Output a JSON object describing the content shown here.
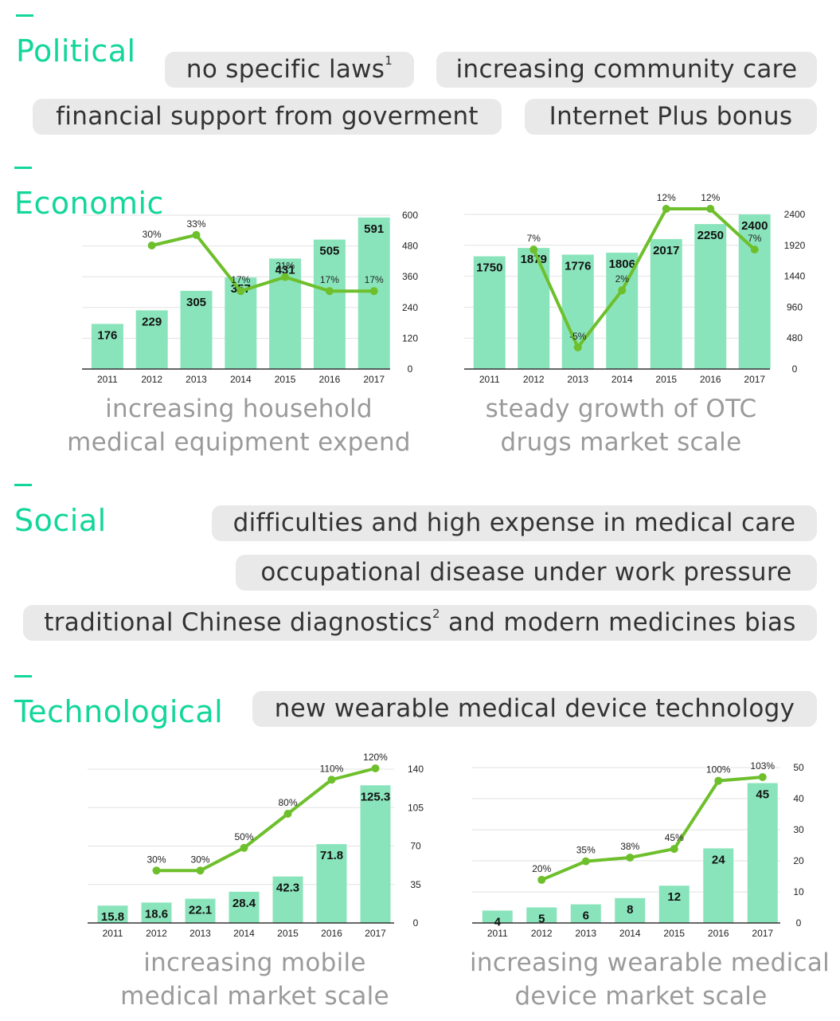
{
  "colors": {
    "accent": "#12d69a",
    "bar": "#8ae4bb",
    "line": "#6ebf2c",
    "pill_bg": "#e9e9e9",
    "caption": "#9a9a9a",
    "grid": "#e2e2e2"
  },
  "sections": {
    "political": {
      "title": "Political",
      "pills": [
        {
          "text": "no specific laws",
          "sup": "1"
        },
        {
          "text": "increasing community care"
        },
        {
          "text": "financial support from goverment"
        },
        {
          "text": "Internet Plus bonus"
        }
      ]
    },
    "economic": {
      "title": "Economic"
    },
    "social": {
      "title": "Social",
      "pills": [
        {
          "text": "difficulties and high expense in medical care"
        },
        {
          "text": "occupational disease under work pressure"
        },
        {
          "text": "traditional Chinese diagnostics",
          "sup": "2",
          "text_after": " and modern medicines bias"
        }
      ]
    },
    "technological": {
      "title": "Technological",
      "pills": [
        {
          "text": "new wearable medical device technology"
        }
      ]
    }
  },
  "chart_data": [
    {
      "type": "bar",
      "categories": [
        "2011",
        "2012",
        "2013",
        "2014",
        "2015",
        "2016",
        "2017"
      ],
      "series": [
        {
          "name": "household medical equipment expend",
          "type": "bar",
          "values": [
            176,
            229,
            305,
            357,
            431,
            505,
            591
          ],
          "labels": [
            "176",
            "229",
            "305",
            "357",
            "431",
            "505",
            "591"
          ]
        },
        {
          "name": "growth rate",
          "type": "line",
          "values": [
            null,
            30,
            33,
            17,
            21,
            17,
            17
          ],
          "labels": [
            null,
            "30%",
            "33%",
            "17%",
            "21%",
            "17%",
            "17%"
          ]
        }
      ],
      "y_right_ticks": [
        "0",
        "120",
        "240",
        "360",
        "480",
        "600"
      ],
      "ylim": [
        0,
        600
      ],
      "line_range": [
        0,
        40
      ],
      "caption": [
        "increasing household",
        "medical equipment expend"
      ]
    },
    {
      "type": "bar",
      "categories": [
        "2011",
        "2012",
        "2013",
        "2014",
        "2015",
        "2016",
        "2017"
      ],
      "series": [
        {
          "name": "OTC drugs market scale",
          "type": "bar",
          "values": [
            1750,
            1879,
            1776,
            1806,
            2017,
            2250,
            2400
          ],
          "labels": [
            "1750",
            "1879",
            "1776",
            "1806",
            "2017",
            "2250",
            "2400"
          ]
        },
        {
          "name": "growth rate",
          "type": "line",
          "values": [
            null,
            7,
            -5,
            2,
            12,
            12,
            7
          ],
          "labels": [
            null,
            "7%",
            "-5%",
            "2%",
            "12%",
            "12%",
            "7%"
          ]
        }
      ],
      "y_right_ticks": [
        "0",
        "480",
        "960",
        "1440",
        "1920",
        "2400"
      ],
      "ylim": [
        0,
        2400
      ],
      "line_range": [
        -6,
        12
      ],
      "caption": [
        "steady growth of OTC",
        "drugs market scale"
      ]
    },
    {
      "type": "bar",
      "categories": [
        "2011",
        "2012",
        "2013",
        "2014",
        "2015",
        "2016",
        "2017"
      ],
      "series": [
        {
          "name": "mobile medical market scale",
          "type": "bar",
          "values": [
            15.8,
            18.6,
            22.1,
            28.4,
            42.3,
            71.8,
            125.3
          ],
          "labels": [
            "15.8",
            "18.6",
            "22.1",
            "28.4",
            "42.3",
            "71.8",
            "125.3"
          ]
        },
        {
          "name": "growth rate",
          "type": "line",
          "values": [
            null,
            30,
            30,
            50,
            80,
            110,
            120
          ],
          "labels": [
            null,
            "30%",
            "30%",
            "50%",
            "80%",
            "110%",
            "120%"
          ]
        }
      ],
      "y_right_ticks": [
        "0",
        "35",
        "70",
        "105",
        "140"
      ],
      "ylim": [
        0,
        140
      ],
      "line_range": [
        0,
        120
      ],
      "caption": [
        "increasing mobile",
        "medical market scale"
      ]
    },
    {
      "type": "bar",
      "categories": [
        "2011",
        "2012",
        "2013",
        "2014",
        "2015",
        "2016",
        "2017"
      ],
      "series": [
        {
          "name": "wearable medical device market scale",
          "type": "bar",
          "values": [
            4,
            5,
            6,
            8,
            12,
            24,
            45
          ],
          "labels": [
            "4",
            "5",
            "6",
            "8",
            "12",
            "24",
            "45"
          ]
        },
        {
          "name": "growth rate",
          "type": "line",
          "values": [
            null,
            20,
            35,
            38,
            45,
            100,
            103
          ],
          "labels": [
            null,
            "20%",
            "35%",
            "38%",
            "45%",
            "100%",
            "103%"
          ]
        }
      ],
      "y_right_ticks": [
        "0",
        "10",
        "20",
        "30",
        "40",
        "50"
      ],
      "ylim": [
        0,
        50
      ],
      "line_range": [
        0,
        103
      ],
      "caption": [
        "increasing wearable medical",
        "device market scale"
      ]
    }
  ]
}
